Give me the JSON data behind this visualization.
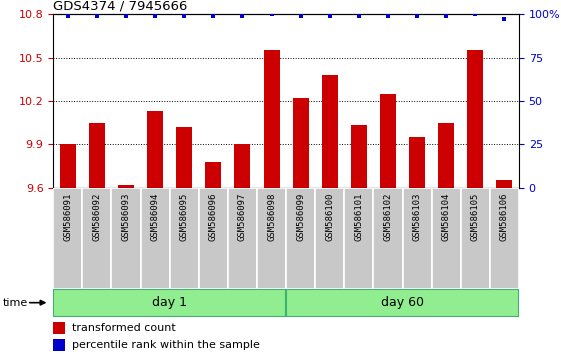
{
  "title": "GDS4374 / 7945666",
  "samples": [
    "GSM586091",
    "GSM586092",
    "GSM586093",
    "GSM586094",
    "GSM586095",
    "GSM586096",
    "GSM586097",
    "GSM586098",
    "GSM586099",
    "GSM586100",
    "GSM586101",
    "GSM586102",
    "GSM586103",
    "GSM586104",
    "GSM586105",
    "GSM586106"
  ],
  "bar_values": [
    9.9,
    10.05,
    9.62,
    10.13,
    10.02,
    9.78,
    9.9,
    10.55,
    10.22,
    10.38,
    10.03,
    10.25,
    9.95,
    10.05,
    10.55,
    9.65
  ],
  "percentile_values": [
    99,
    99,
    99,
    99,
    99,
    99,
    99,
    100,
    99,
    99,
    99,
    99,
    99,
    99,
    100,
    97
  ],
  "bar_color": "#cc0000",
  "dot_color": "#0000cc",
  "ymin": 9.6,
  "ymax": 10.8,
  "yticks": [
    9.6,
    9.9,
    10.2,
    10.5,
    10.8
  ],
  "y2min": 0,
  "y2max": 100,
  "y2ticks": [
    0,
    25,
    50,
    75,
    100
  ],
  "day1_samples": 8,
  "day60_samples": 8,
  "group_labels": [
    "day 1",
    "day 60"
  ],
  "group_color_light": "#90ee90",
  "group_color_dark": "#3cb371",
  "xlabel_left": "time",
  "legend_bar_label": "transformed count",
  "legend_dot_label": "percentile rank within the sample",
  "bar_width": 0.55,
  "sample_bg_color": "#c8c8c8",
  "sample_bg_color2": "#d8d8d8",
  "plot_bg_color": "#ffffff"
}
